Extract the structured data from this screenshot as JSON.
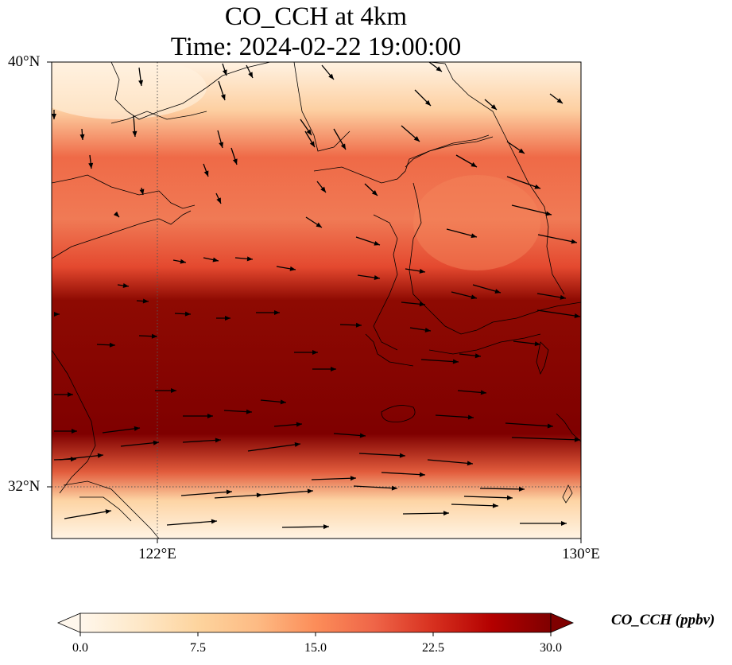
{
  "title": {
    "line1": "CO_CCH at 4km",
    "line2": "Time: 2024-02-22 19:00:00"
  },
  "axes": {
    "lat_ticks": [
      "40°N",
      "32°N"
    ],
    "lon_ticks": [
      "122°E",
      "130°E"
    ],
    "lat_range": [
      31,
      40
    ],
    "lon_range": [
      120,
      130
    ],
    "gridlines": "dotted at 122°E and 32°N"
  },
  "colorbar": {
    "label": "CO_CCH (ppbv)",
    "ticks": [
      "0.0",
      "7.5",
      "15.0",
      "22.5",
      "30.0"
    ],
    "min": 0,
    "max": 30,
    "colormap": "OrRd",
    "extend": "both",
    "stops": [
      "#fff7ec",
      "#fee8c8",
      "#fdd49e",
      "#fdbb84",
      "#fc8d59",
      "#ef6548",
      "#d7301f",
      "#b30000",
      "#7f0000"
    ]
  },
  "field_description_bands": [
    {
      "lat_span": "37.5-40",
      "level": "light to orange"
    },
    {
      "lat_span": "34-37",
      "level": "orange-red"
    },
    {
      "lat_span": "32.5-34.5",
      "level": "dark red (~30)"
    },
    {
      "lat_span": "31-32.5",
      "level": "light"
    }
  ]
}
